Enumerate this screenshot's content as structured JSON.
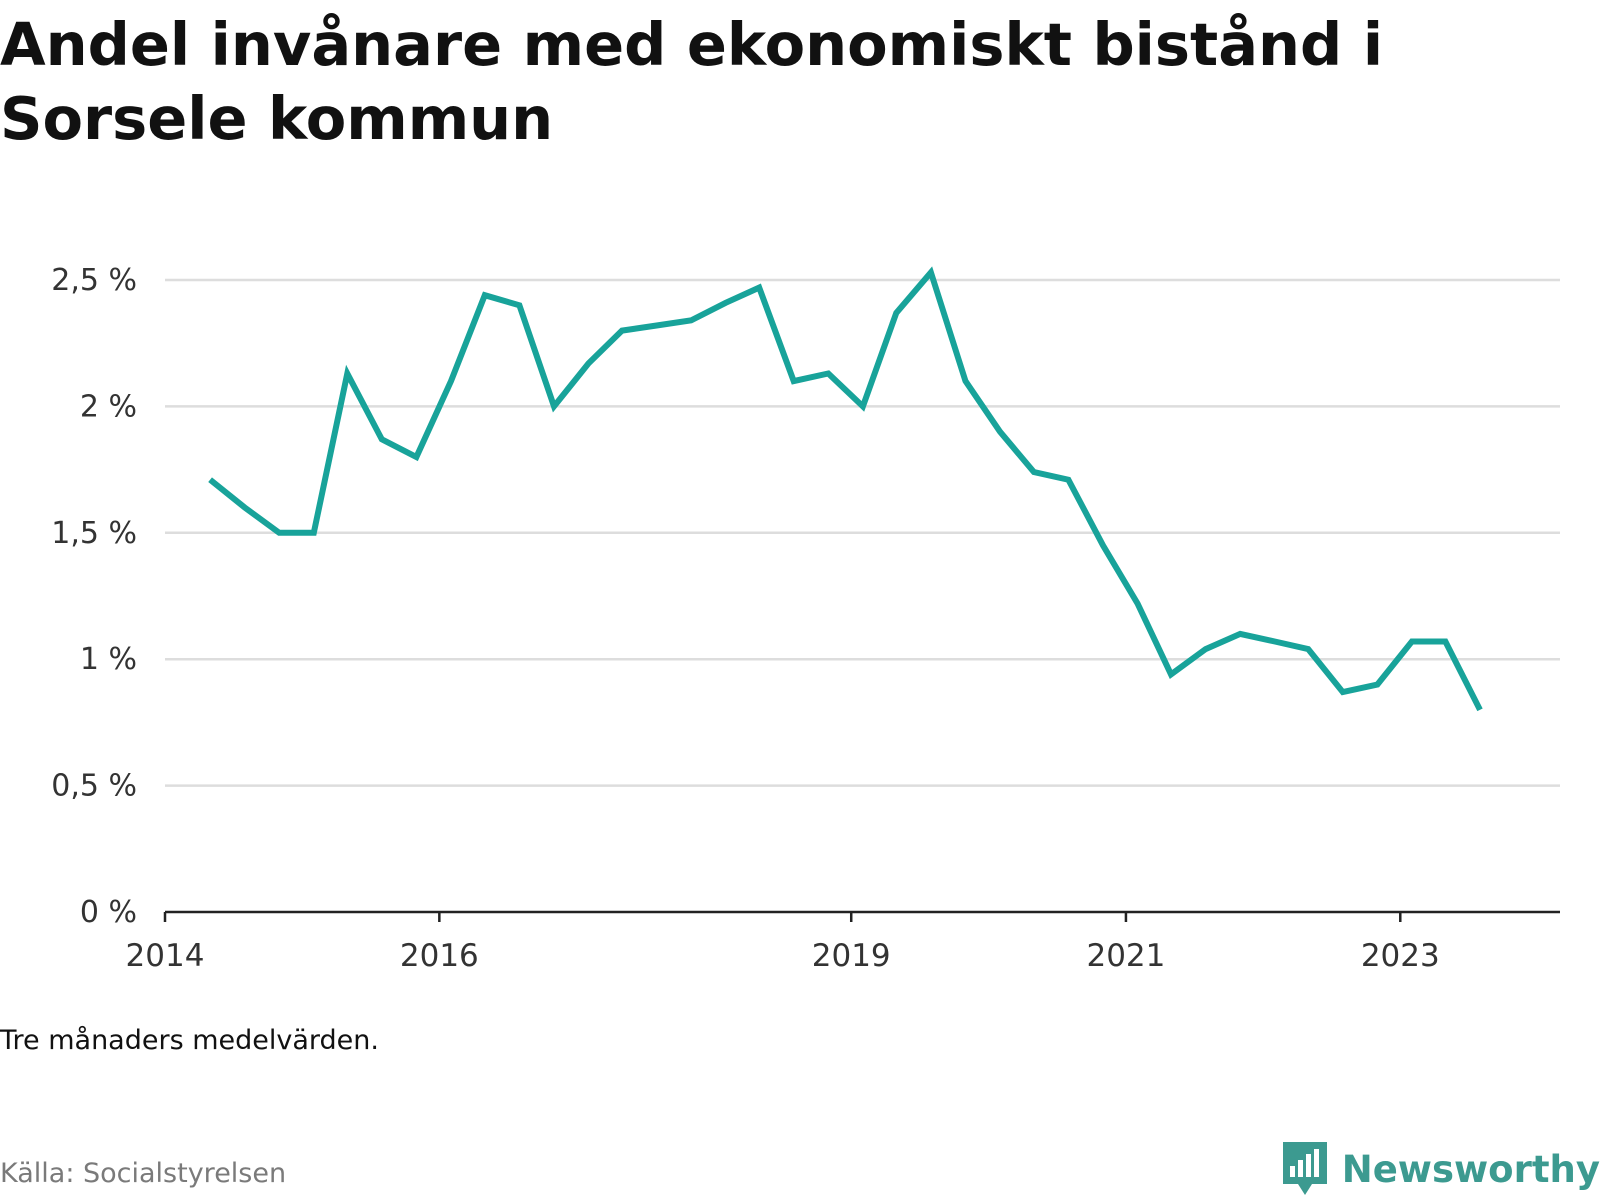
{
  "title": "Andel invånare med ekonomiskt bistånd i Sorsele kommun",
  "note": "Tre månaders medelvärden.",
  "source": "Källa: Socialstyrelsen",
  "brand": {
    "name": "Newsworthy",
    "logo_icon": "bar-chart-speech-bubble-icon",
    "color": "#3c9a90"
  },
  "colors": {
    "line": "#18a39a",
    "grid": "#dddddd",
    "axis": "#222222"
  },
  "chart_data": {
    "type": "line",
    "title": "Andel invånare med ekonomiskt bistånd i Sorsele kommun",
    "xlabel": "",
    "ylabel": "",
    "ylim": [
      0,
      2.5
    ],
    "xlim": [
      "2014-01-01",
      "2024-03-01"
    ],
    "yticks": [
      0,
      0.5,
      1,
      1.5,
      2,
      2.5
    ],
    "ytick_labels": [
      "0 %",
      "0,5 %",
      "1 %",
      "1,5 %",
      "2 %",
      "2,5 %"
    ],
    "xticks": [
      "2014-01-01",
      "2016-01-01",
      "2019-01-01",
      "2021-01-01",
      "2023-01-01"
    ],
    "xtick_labels": [
      "2014",
      "2016",
      "2019",
      "2021",
      "2023"
    ],
    "grid": true,
    "legend": "none",
    "series": [
      {
        "x": [
          "2014-05-01",
          "2014-08-01",
          "2014-11-01",
          "2015-02-01",
          "2015-05-01",
          "2015-08-01",
          "2015-11-01",
          "2016-02-01",
          "2016-05-01",
          "2016-08-01",
          "2016-11-01",
          "2017-02-01",
          "2017-05-01",
          "2017-08-01",
          "2017-11-01",
          "2018-02-01",
          "2018-05-01",
          "2018-08-01",
          "2018-11-01",
          "2019-02-01",
          "2019-05-01",
          "2019-08-01",
          "2019-11-01",
          "2020-02-01",
          "2020-05-01",
          "2020-08-01",
          "2020-11-01",
          "2021-02-01",
          "2021-05-01",
          "2021-08-01",
          "2021-11-01",
          "2022-02-01",
          "2022-05-01",
          "2022-08-01",
          "2022-11-01",
          "2023-02-01",
          "2023-05-01",
          "2023-08-01"
        ],
        "values": [
          1.71,
          1.6,
          1.5,
          1.5,
          2.13,
          1.87,
          1.8,
          2.1,
          2.44,
          2.4,
          2.0,
          2.17,
          2.3,
          2.32,
          2.34,
          2.41,
          2.47,
          2.1,
          2.13,
          2.0,
          2.37,
          2.53,
          2.1,
          1.9,
          1.74,
          1.71,
          1.45,
          1.22,
          0.94,
          1.04,
          1.1,
          1.07,
          1.04,
          0.87,
          0.9,
          1.07,
          1.07,
          0.8
        ]
      }
    ]
  }
}
